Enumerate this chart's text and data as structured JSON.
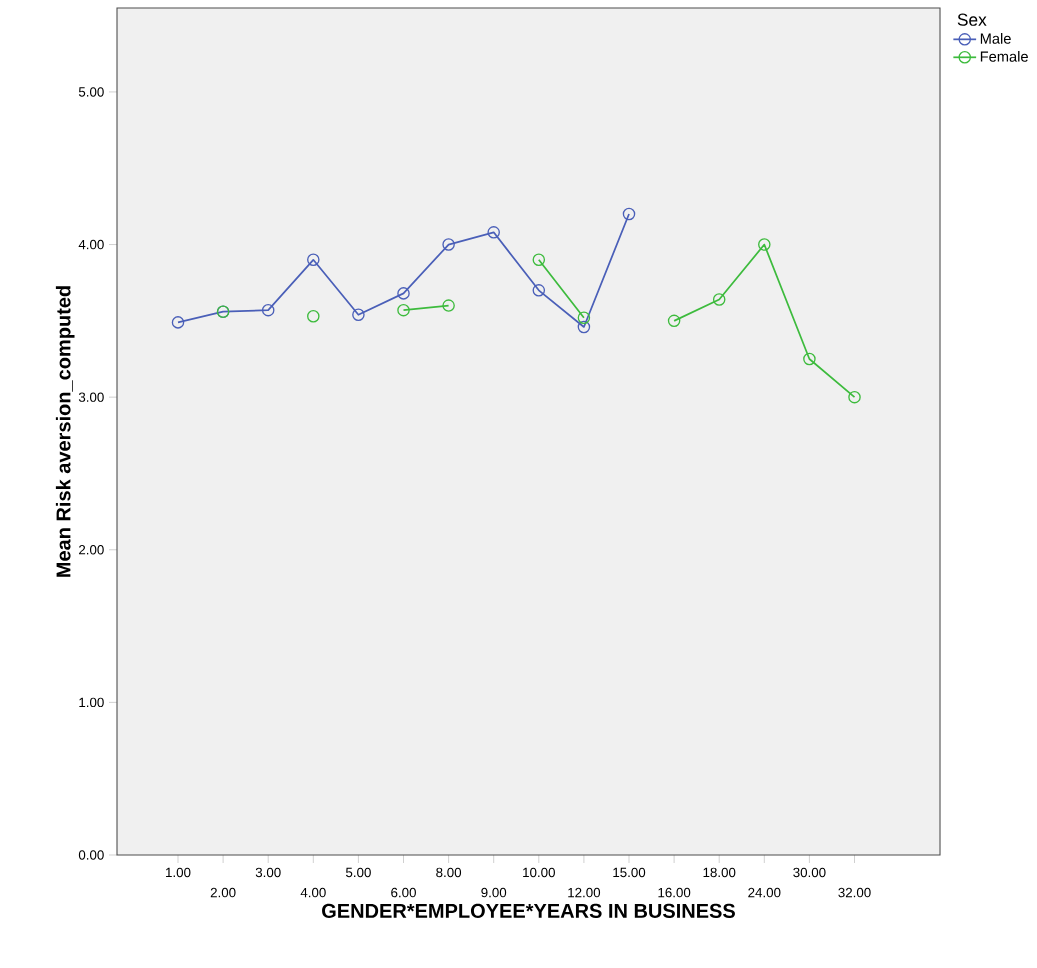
{
  "chart_data": {
    "type": "line",
    "xlabel": "GENDER*EMPLOYEE*YEARS IN BUSINESS",
    "ylabel": "Mean Risk aversion_computed",
    "legend_title": "Sex",
    "categories": [
      "1.00",
      "2.00",
      "3.00",
      "4.00",
      "5.00",
      "6.00",
      "8.00",
      "9.00",
      "10.00",
      "12.00",
      "15.00",
      "16.00",
      "18.00",
      "24.00",
      "30.00",
      "32.00"
    ],
    "series": [
      {
        "name": "Male",
        "color": "#4a5fb8",
        "values": [
          3.49,
          3.56,
          3.57,
          3.9,
          3.54,
          3.68,
          4.0,
          4.08,
          3.7,
          3.46,
          4.2,
          null,
          null,
          null,
          null,
          null
        ]
      },
      {
        "name": "Female",
        "color": "#3dbb3d",
        "values": [
          null,
          3.56,
          null,
          3.53,
          null,
          3.57,
          3.6,
          null,
          3.9,
          3.52,
          null,
          3.5,
          3.64,
          4.0,
          3.25,
          3.0
        ]
      }
    ],
    "ylim": [
      0,
      5.55
    ],
    "yticks": [
      {
        "value": 0,
        "label": "0.00"
      },
      {
        "value": 1,
        "label": "1.00"
      },
      {
        "value": 2,
        "label": "2.00"
      },
      {
        "value": 3,
        "label": "3.00"
      },
      {
        "value": 4,
        "label": "4.00"
      },
      {
        "value": 5,
        "label": "5.00"
      }
    ],
    "marker": "circle",
    "line_style": "solid",
    "legend": "right",
    "grid": false
  }
}
